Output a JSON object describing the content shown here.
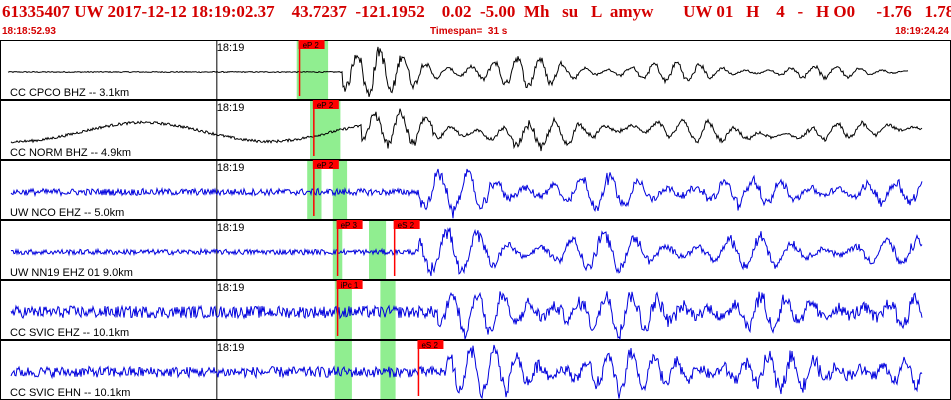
{
  "header": {
    "title": "61335407 UW 2017-12-12 18:19:02.37    43.7237  -121.1952    0.02  -5.00  Mh   su   L  amyw       UW 01   H    4   -   H O0     -1.76   1.78",
    "start_time": "18:18:52.93",
    "timespan": "Timespan=  31 s",
    "end_time": "18:19:24.24"
  },
  "minute_tick": "18:19",
  "colors": {
    "header_red": "#d40000",
    "trace_black": "#000000",
    "trace_blue": "#0000dd",
    "pick_red": "#ff0000",
    "window_green": "#90ee90"
  },
  "traces": [
    {
      "label": "CC CPCO BHZ -- 3.1km",
      "color": "black",
      "noise": 0.04,
      "signal": 0.9,
      "onset": 0.36,
      "decay": 0.55,
      "period": 8,
      "waveform": "quiet",
      "windows": [
        [
          0.312,
          0.345
        ]
      ],
      "picks": [
        {
          "text": "eP 2",
          "x": 0.315,
          "line": true
        }
      ]
    },
    {
      "label": "CC NORM BHZ -- 4.9km",
      "color": "black",
      "noise": 0.1,
      "signal": 0.65,
      "onset": 0.38,
      "decay": 0.9,
      "period": 9,
      "waveform": "sine",
      "windows": [
        [
          0.326,
          0.358
        ]
      ],
      "picks": [
        {
          "text": "eP 2",
          "x": 0.33,
          "line": true
        }
      ]
    },
    {
      "label": "UW NCO EHZ -- 5.0km",
      "color": "blue",
      "noise": 0.25,
      "signal": 0.75,
      "onset": 0.44,
      "decay": 1.2,
      "period": 10,
      "waveform": "noise",
      "windows": [
        [
          0.323,
          0.338
        ],
        [
          0.35,
          0.365
        ]
      ],
      "picks": [
        {
          "text": "eP 2",
          "x": 0.33,
          "line": true
        }
      ]
    },
    {
      "label": "UW NN19 EHZ 01 9.0km",
      "color": "blue",
      "noise": 0.2,
      "signal": 0.85,
      "onset": 0.44,
      "decay": 1.3,
      "period": 11,
      "waveform": "noise",
      "windows": [
        [
          0.35,
          0.36
        ],
        [
          0.388,
          0.406
        ]
      ],
      "picks": [
        {
          "text": "eP 3",
          "x": 0.355,
          "line": true
        },
        {
          "text": "eS 2",
          "x": 0.415,
          "line": true
        }
      ]
    },
    {
      "label": "CC SVIC EHZ -- 10.1km",
      "color": "blue",
      "noise": 0.45,
      "signal": 0.85,
      "onset": 0.46,
      "decay": 1.5,
      "period": 9,
      "waveform": "noise",
      "windows": [
        [
          0.352,
          0.37
        ],
        [
          0.4,
          0.416
        ]
      ],
      "picks": [
        {
          "text": "iPc 1",
          "x": 0.355,
          "line": true
        }
      ]
    },
    {
      "label": "CC SVIC EHN -- 10.1km",
      "color": "blue",
      "noise": 0.4,
      "signal": 0.85,
      "onset": 0.47,
      "decay": 1.5,
      "period": 8,
      "waveform": "noise",
      "windows": [
        [
          0.352,
          0.37
        ],
        [
          0.4,
          0.416
        ]
      ],
      "picks": [
        {
          "text": "eS 2",
          "x": 0.44,
          "line": true
        }
      ]
    }
  ]
}
